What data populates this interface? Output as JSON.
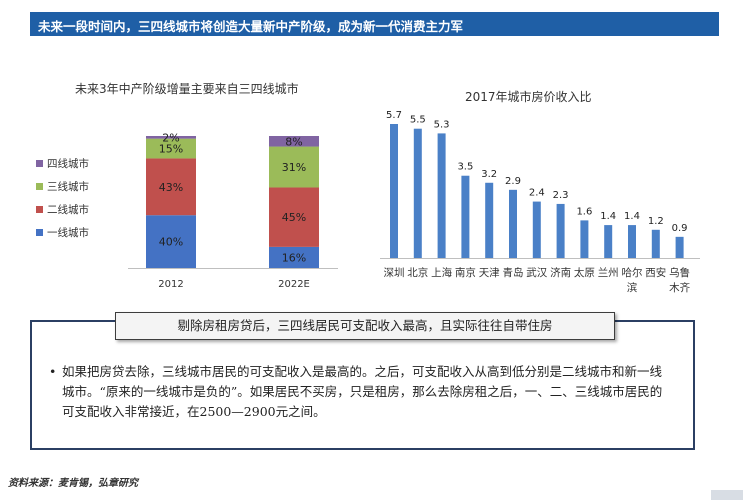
{
  "header": {
    "title": "未来一段时间内，三四线城市将创造大量新中产阶级，成为新一代消费主力军"
  },
  "chart_data": [
    {
      "type": "bar",
      "stacked": true,
      "title": "未来3年中产阶级增量主要来自三四线城市",
      "categories": [
        "2012",
        "2022E"
      ],
      "series": [
        {
          "name": "一线城市",
          "color": "#4472c4",
          "values": [
            40,
            16
          ],
          "labels": [
            "40%",
            "16%"
          ]
        },
        {
          "name": "二线城市",
          "color": "#c0504d",
          "values": [
            43,
            45
          ],
          "labels": [
            "43%",
            "45%"
          ]
        },
        {
          "name": "三线城市",
          "color": "#9bbb59",
          "values": [
            15,
            31
          ],
          "labels": [
            "15%",
            "31%"
          ]
        },
        {
          "name": "四线城市",
          "color": "#8064a2",
          "values": [
            2,
            8
          ],
          "labels": [
            "2%",
            "8%"
          ]
        }
      ],
      "legend_order": [
        "四线城市",
        "三线城市",
        "二线城市",
        "一线城市"
      ],
      "legend_position": "left",
      "ylim": [
        0,
        100
      ]
    },
    {
      "type": "bar",
      "title": "2017年城市房价收入比",
      "color": "#4a80c7",
      "categories": [
        "深圳",
        "北京",
        "上海",
        "南京",
        "天津",
        "青岛",
        "武汉",
        "济南",
        "太原",
        "兰州",
        "哈尔滨",
        "西安",
        "乌鲁木齐"
      ],
      "category_lines": [
        [
          "深圳"
        ],
        [
          "北京"
        ],
        [
          "上海"
        ],
        [
          "南京"
        ],
        [
          "天津"
        ],
        [
          "青岛"
        ],
        [
          "武汉"
        ],
        [
          "济南"
        ],
        [
          "太原"
        ],
        [
          "兰州"
        ],
        [
          "哈尔",
          "滨"
        ],
        [
          "西安"
        ],
        [
          "乌鲁",
          "木齐"
        ]
      ],
      "values": [
        5.7,
        5.5,
        5.3,
        3.5,
        3.2,
        2.9,
        2.4,
        2.3,
        1.6,
        1.4,
        1.4,
        1.2,
        0.9
      ],
      "labels": [
        "5.7",
        "5.5",
        "5.3",
        "3.5",
        "3.2",
        "2.9",
        "2.4",
        "2.3",
        "1.6",
        "1.4",
        "1.4",
        "1.2",
        "0.9"
      ],
      "ylim": [
        0,
        5.7
      ]
    }
  ],
  "callout": {
    "headline": "剔除房租房贷后，三四线居民可支配收入最高，且实际往往自带住房",
    "bullet": "•",
    "body": "如果把房贷去除，三线城市居民的可支配收入是最高的。之后，可支配收入从高到低分别是二线城市和新一线城市。“原来的一线城市是负的”。如果居民不买房，只是租房，那么去除房租之后，一、二、三线城市居民的可支配收入非常接近，在2500—2900元之间。"
  },
  "source": "资料来源：麦肯锡，弘章研究"
}
